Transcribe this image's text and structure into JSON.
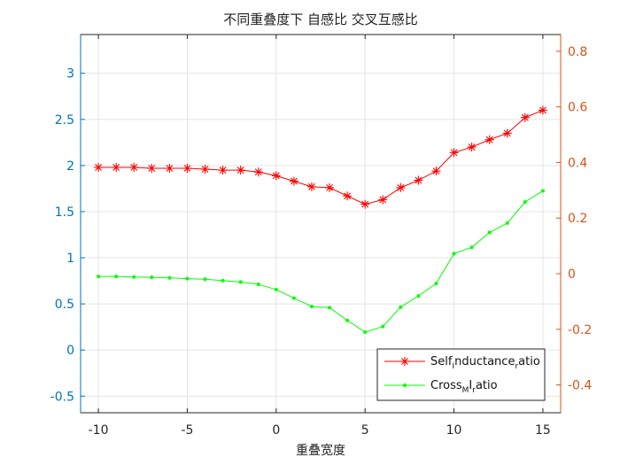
{
  "chart_data": {
    "type": "line",
    "title": "不同重叠度下 自感比 交叉互感比",
    "xlabel": "重叠宽度",
    "ylabel": "",
    "xlim": [
      -11,
      16
    ],
    "ylim_left": [
      -0.68,
      3.42
    ],
    "ylim_right": [
      -0.5,
      0.86
    ],
    "xticks": [
      "-10",
      "-5",
      "0",
      "5",
      "10",
      "15"
    ],
    "xtick_values": [
      -10,
      -5,
      0,
      5,
      10,
      15
    ],
    "yticks_left": [
      "-0.5",
      "0",
      "0.5",
      "1",
      "1.5",
      "2",
      "2.5",
      "3"
    ],
    "ytick_values_left": [
      -0.5,
      0,
      0.5,
      1,
      1.5,
      2,
      2.5,
      3
    ],
    "yticks_right": [
      "-0.4",
      "-0.2",
      "0",
      "0.2",
      "0.4",
      "0.6",
      "0.8"
    ],
    "ytick_values_right": [
      -0.4,
      -0.2,
      0,
      0.2,
      0.4,
      0.6,
      0.8
    ],
    "grid": true,
    "legend_placement": "bottom-right",
    "x": [
      -10,
      -9,
      -8,
      -7,
      -6,
      -5,
      -4,
      -3,
      -2,
      -1,
      0,
      1,
      2,
      3,
      4,
      5,
      6,
      7,
      8,
      9,
      10,
      11,
      12,
      13,
      14,
      15
    ],
    "series": [
      {
        "legend_main": "Self",
        "legend_sub1": "I",
        "legend_mid": "nductance",
        "legend_sub2": "r",
        "legend_tail": "atio",
        "axis": "left",
        "color": "#ff0000",
        "marker": "asterisk",
        "values": [
          1.98,
          1.98,
          1.98,
          1.97,
          1.97,
          1.97,
          1.96,
          1.95,
          1.95,
          1.93,
          1.89,
          1.83,
          1.77,
          1.76,
          1.67,
          1.58,
          1.63,
          1.76,
          1.84,
          1.94,
          2.14,
          2.2,
          2.28,
          2.35,
          2.52,
          2.6
        ]
      },
      {
        "legend_main": "Cross",
        "legend_sub1": "M",
        "legend_mid": "I",
        "legend_sub2": "r",
        "legend_tail": "atio",
        "axis": "right",
        "color": "#00ff00",
        "marker": "dot",
        "values": [
          -0.01,
          -0.01,
          -0.012,
          -0.013,
          -0.015,
          -0.018,
          -0.02,
          -0.025,
          -0.03,
          -0.038,
          -0.057,
          -0.088,
          -0.118,
          -0.122,
          -0.168,
          -0.21,
          -0.19,
          -0.12,
          -0.08,
          -0.035,
          0.072,
          0.095,
          0.148,
          0.182,
          0.258,
          0.298
        ]
      }
    ],
    "colors": {
      "left_axis": "#0072bd",
      "right_axis": "#d95319",
      "grid": "#e4e4e4",
      "axes_box": "#262626"
    }
  }
}
